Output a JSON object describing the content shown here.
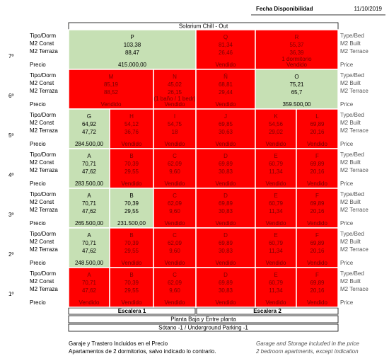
{
  "header": {
    "label": "Fecha Disponibilidad",
    "date": "11/10/2019"
  },
  "title": "Solarium Chill - Out",
  "row_labels": [
    "Tipo/Dorm",
    "M2 Const",
    "M2 Terraza",
    "Precio"
  ],
  "row_labels_en": [
    "Type/Bed",
    "M2 Built",
    "M2 Terrace",
    "Price"
  ],
  "floors": [
    {
      "floor": "7º",
      "units": [
        {
          "unit": "P",
          "m2_const": "103,38",
          "m2_terrace": "88,47",
          "status": "415.000,00",
          "color": "#c6e0b4"
        },
        {
          "unit": "Q",
          "m2_const": "81,34",
          "m2_terrace": "26,46",
          "status": "Vendido",
          "color": "#ff0000"
        },
        {
          "unit": "R",
          "m2_const": "55,37",
          "m2_terrace": "36,39",
          "note": "1 dormitorio",
          "status": "Vendido",
          "color": "#ff0000"
        }
      ]
    },
    {
      "floor": "6º",
      "units": [
        {
          "unit": "M",
          "m2_const": "85,19",
          "m2_terrace": "88,52",
          "status": "Vendido",
          "color": "#ff0000"
        },
        {
          "unit": "N",
          "m2_const": "45,02",
          "m2_terrace": "26,15",
          "note": "(1 baño / 1 bedr)",
          "status": "Vendido",
          "color": "#ff0000"
        },
        {
          "unit": "Ñ",
          "m2_const": "68,81",
          "m2_terrace": "29,44",
          "status": "Vendido",
          "color": "#ff0000"
        },
        {
          "unit": "O",
          "m2_const": "75,21",
          "m2_terrace": "65,7",
          "status": "359.500,00",
          "color": "#c6e0b4"
        }
      ]
    },
    {
      "floor": "5º",
      "units": [
        {
          "unit": "G",
          "m2_const": "64,92",
          "m2_terrace": "47,72",
          "status": "284.500,00",
          "color": "#c6e0b4"
        },
        {
          "unit": "H",
          "m2_const": "54,12",
          "m2_terrace": "36,76",
          "status": "Vendido",
          "color": "#ff0000"
        },
        {
          "unit": "I",
          "m2_const": "54,75",
          "m2_terrace": "18",
          "status": "Vendido",
          "color": "#ff0000"
        },
        {
          "unit": "J",
          "m2_const": "69,85",
          "m2_terrace": "30,63",
          "status": "Vendido",
          "color": "#ff0000"
        },
        {
          "unit": "K",
          "m2_const": "54,56",
          "m2_terrace": "29,02",
          "status": "Vendido",
          "color": "#ff0000"
        },
        {
          "unit": "L",
          "m2_const": "69,89",
          "m2_terrace": "20,16",
          "status": "Vendido",
          "color": "#ff0000"
        }
      ]
    },
    {
      "floor": "4º",
      "units": [
        {
          "unit": "A",
          "m2_const": "70,71",
          "m2_terrace": "47,62",
          "status": "283.500,00",
          "color": "#c6e0b4"
        },
        {
          "unit": "B",
          "m2_const": "70,39",
          "m2_terrace": "29,55",
          "status": "Vendido",
          "color": "#ff0000"
        },
        {
          "unit": "C",
          "m2_const": "62,09",
          "m2_terrace": "9,60",
          "status": "Vendido",
          "color": "#ff0000"
        },
        {
          "unit": "D",
          "m2_const": "69,89",
          "m2_terrace": "30,83",
          "status": "Vendido",
          "color": "#ff0000"
        },
        {
          "unit": "E",
          "m2_const": "60,79",
          "m2_terrace": "11,34",
          "status": "Vendido",
          "color": "#ff0000"
        },
        {
          "unit": "F",
          "m2_const": "69,89",
          "m2_terrace": "20,16",
          "status": "Vendido",
          "color": "#ff0000"
        }
      ]
    },
    {
      "floor": "3º",
      "units": [
        {
          "unit": "A",
          "m2_const": "70,71",
          "m2_terrace": "47,62",
          "status": "265.500,00",
          "color": "#c6e0b4"
        },
        {
          "unit": "B",
          "m2_const": "70,39",
          "m2_terrace": "29,55",
          "status": "231.500,00",
          "color": "#c6e0b4"
        },
        {
          "unit": "C",
          "m2_const": "62,09",
          "m2_terrace": "9,60",
          "status": "Vendido",
          "color": "#ff0000"
        },
        {
          "unit": "D",
          "m2_const": "69,89",
          "m2_terrace": "30,83",
          "status": "Vendido",
          "color": "#ff0000"
        },
        {
          "unit": "E",
          "m2_const": "60,79",
          "m2_terrace": "11,34",
          "status": "Vendido",
          "color": "#ff0000"
        },
        {
          "unit": "F",
          "m2_const": "69,89",
          "m2_terrace": "20,16",
          "status": "Vendido",
          "color": "#ff0000"
        }
      ]
    },
    {
      "floor": "2º",
      "units": [
        {
          "unit": "A",
          "m2_const": "70,71",
          "m2_terrace": "47,62",
          "status": "248.500,00",
          "color": "#c6e0b4"
        },
        {
          "unit": "B",
          "m2_const": "70,39",
          "m2_terrace": "29,55",
          "status": "Vendido",
          "color": "#ff0000"
        },
        {
          "unit": "C",
          "m2_const": "62,09",
          "m2_terrace": "9,60",
          "status": "Vendido",
          "color": "#ff0000"
        },
        {
          "unit": "D",
          "m2_const": "69,89",
          "m2_terrace": "30,83",
          "status": "Vendido",
          "color": "#ff0000"
        },
        {
          "unit": "E",
          "m2_const": "60,79",
          "m2_terrace": "11,34",
          "status": "Vendido",
          "color": "#ff0000"
        },
        {
          "unit": "F",
          "m2_const": "69,89",
          "m2_terrace": "20,16",
          "status": "Vendido",
          "color": "#ff0000"
        }
      ]
    },
    {
      "floor": "1º",
      "units": [
        {
          "unit": "A",
          "m2_const": "70,71",
          "m2_terrace": "47,62",
          "status": "Vendido",
          "color": "#ff0000"
        },
        {
          "unit": "B",
          "m2_const": "70,39",
          "m2_terrace": "29,55",
          "status": "Vendido",
          "color": "#ff0000"
        },
        {
          "unit": "C",
          "m2_const": "62,09",
          "m2_terrace": "9,60",
          "status": "Vendido",
          "color": "#ff0000"
        },
        {
          "unit": "D",
          "m2_const": "69,89",
          "m2_terrace": "30,83",
          "status": "Vendido",
          "color": "#ff0000"
        },
        {
          "unit": "E",
          "m2_const": "60,79",
          "m2_terrace": "11,34",
          "status": "Vendido",
          "color": "#ff0000"
        },
        {
          "unit": "F",
          "m2_const": "69,89",
          "m2_terrace": "20,16",
          "status": "Vendido",
          "color": "#ff0000"
        }
      ]
    }
  ],
  "stairs": [
    "Escalera 1",
    "Escalera 2"
  ],
  "ground_floor": "Planta Baja y Entre planta",
  "basement": "Sótano -1 / Underground Parking -1",
  "notes": [
    "Garaje y Trastero Incluidos en el Precio",
    "Apartamentos de 2 dormitorios, salvo indicado lo contrario."
  ],
  "notes_en": [
    "Garage and Storage included in the price",
    "2 bedroom apartments, except indication"
  ]
}
